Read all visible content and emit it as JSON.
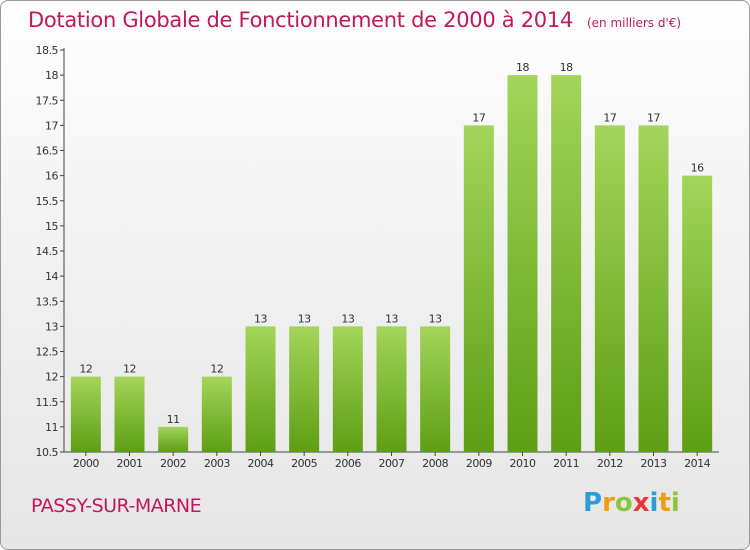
{
  "title": "Dotation Globale de Fonctionnement de 2000 à 2014",
  "unit": "(en milliers d'€)",
  "commune": "PASSY-SUR-MARNE",
  "logo": {
    "letters": [
      {
        "ch": "P",
        "color": "#2e9bd6"
      },
      {
        "ch": "r",
        "color": "#f39c12"
      },
      {
        "ch": "o",
        "color": "#8cc63f"
      },
      {
        "ch": "x",
        "color": "#e53935"
      },
      {
        "ch": "i",
        "color": "#2e9bd6"
      },
      {
        "ch": "t",
        "color": "#f39c12"
      },
      {
        "ch": "i",
        "color": "#8cc63f"
      }
    ]
  },
  "colors": {
    "bar_top": "#a3d55a",
    "bar_bottom": "#5e9e14",
    "accent": "#c2185b"
  },
  "chart_data": {
    "type": "bar",
    "categories": [
      "2000",
      "2001",
      "2002",
      "2003",
      "2004",
      "2005",
      "2006",
      "2007",
      "2008",
      "2009",
      "2010",
      "2011",
      "2012",
      "2013",
      "2014"
    ],
    "values": [
      12,
      12,
      11,
      12,
      13,
      13,
      13,
      13,
      13,
      17,
      18,
      18,
      17,
      17,
      16
    ],
    "value_labels": [
      "12",
      "12",
      "11",
      "12",
      "13",
      "13",
      "13",
      "13",
      "13",
      "17",
      "18",
      "18",
      "17",
      "17",
      "16"
    ],
    "ylim": [
      10.5,
      18.5
    ],
    "yticks": [
      10.5,
      11,
      11.5,
      12,
      12.5,
      13,
      13.5,
      14,
      14.5,
      15,
      15.5,
      16,
      16.5,
      17,
      17.5,
      18,
      18.5
    ],
    "ytick_labels": [
      "10.5",
      "11",
      "11.5",
      "12",
      "12.5",
      "13",
      "13.5",
      "14",
      "14.5",
      "15",
      "15.5",
      "16",
      "16.5",
      "17",
      "17.5",
      "18",
      "18.5"
    ],
    "grid": false,
    "legend": "none"
  }
}
